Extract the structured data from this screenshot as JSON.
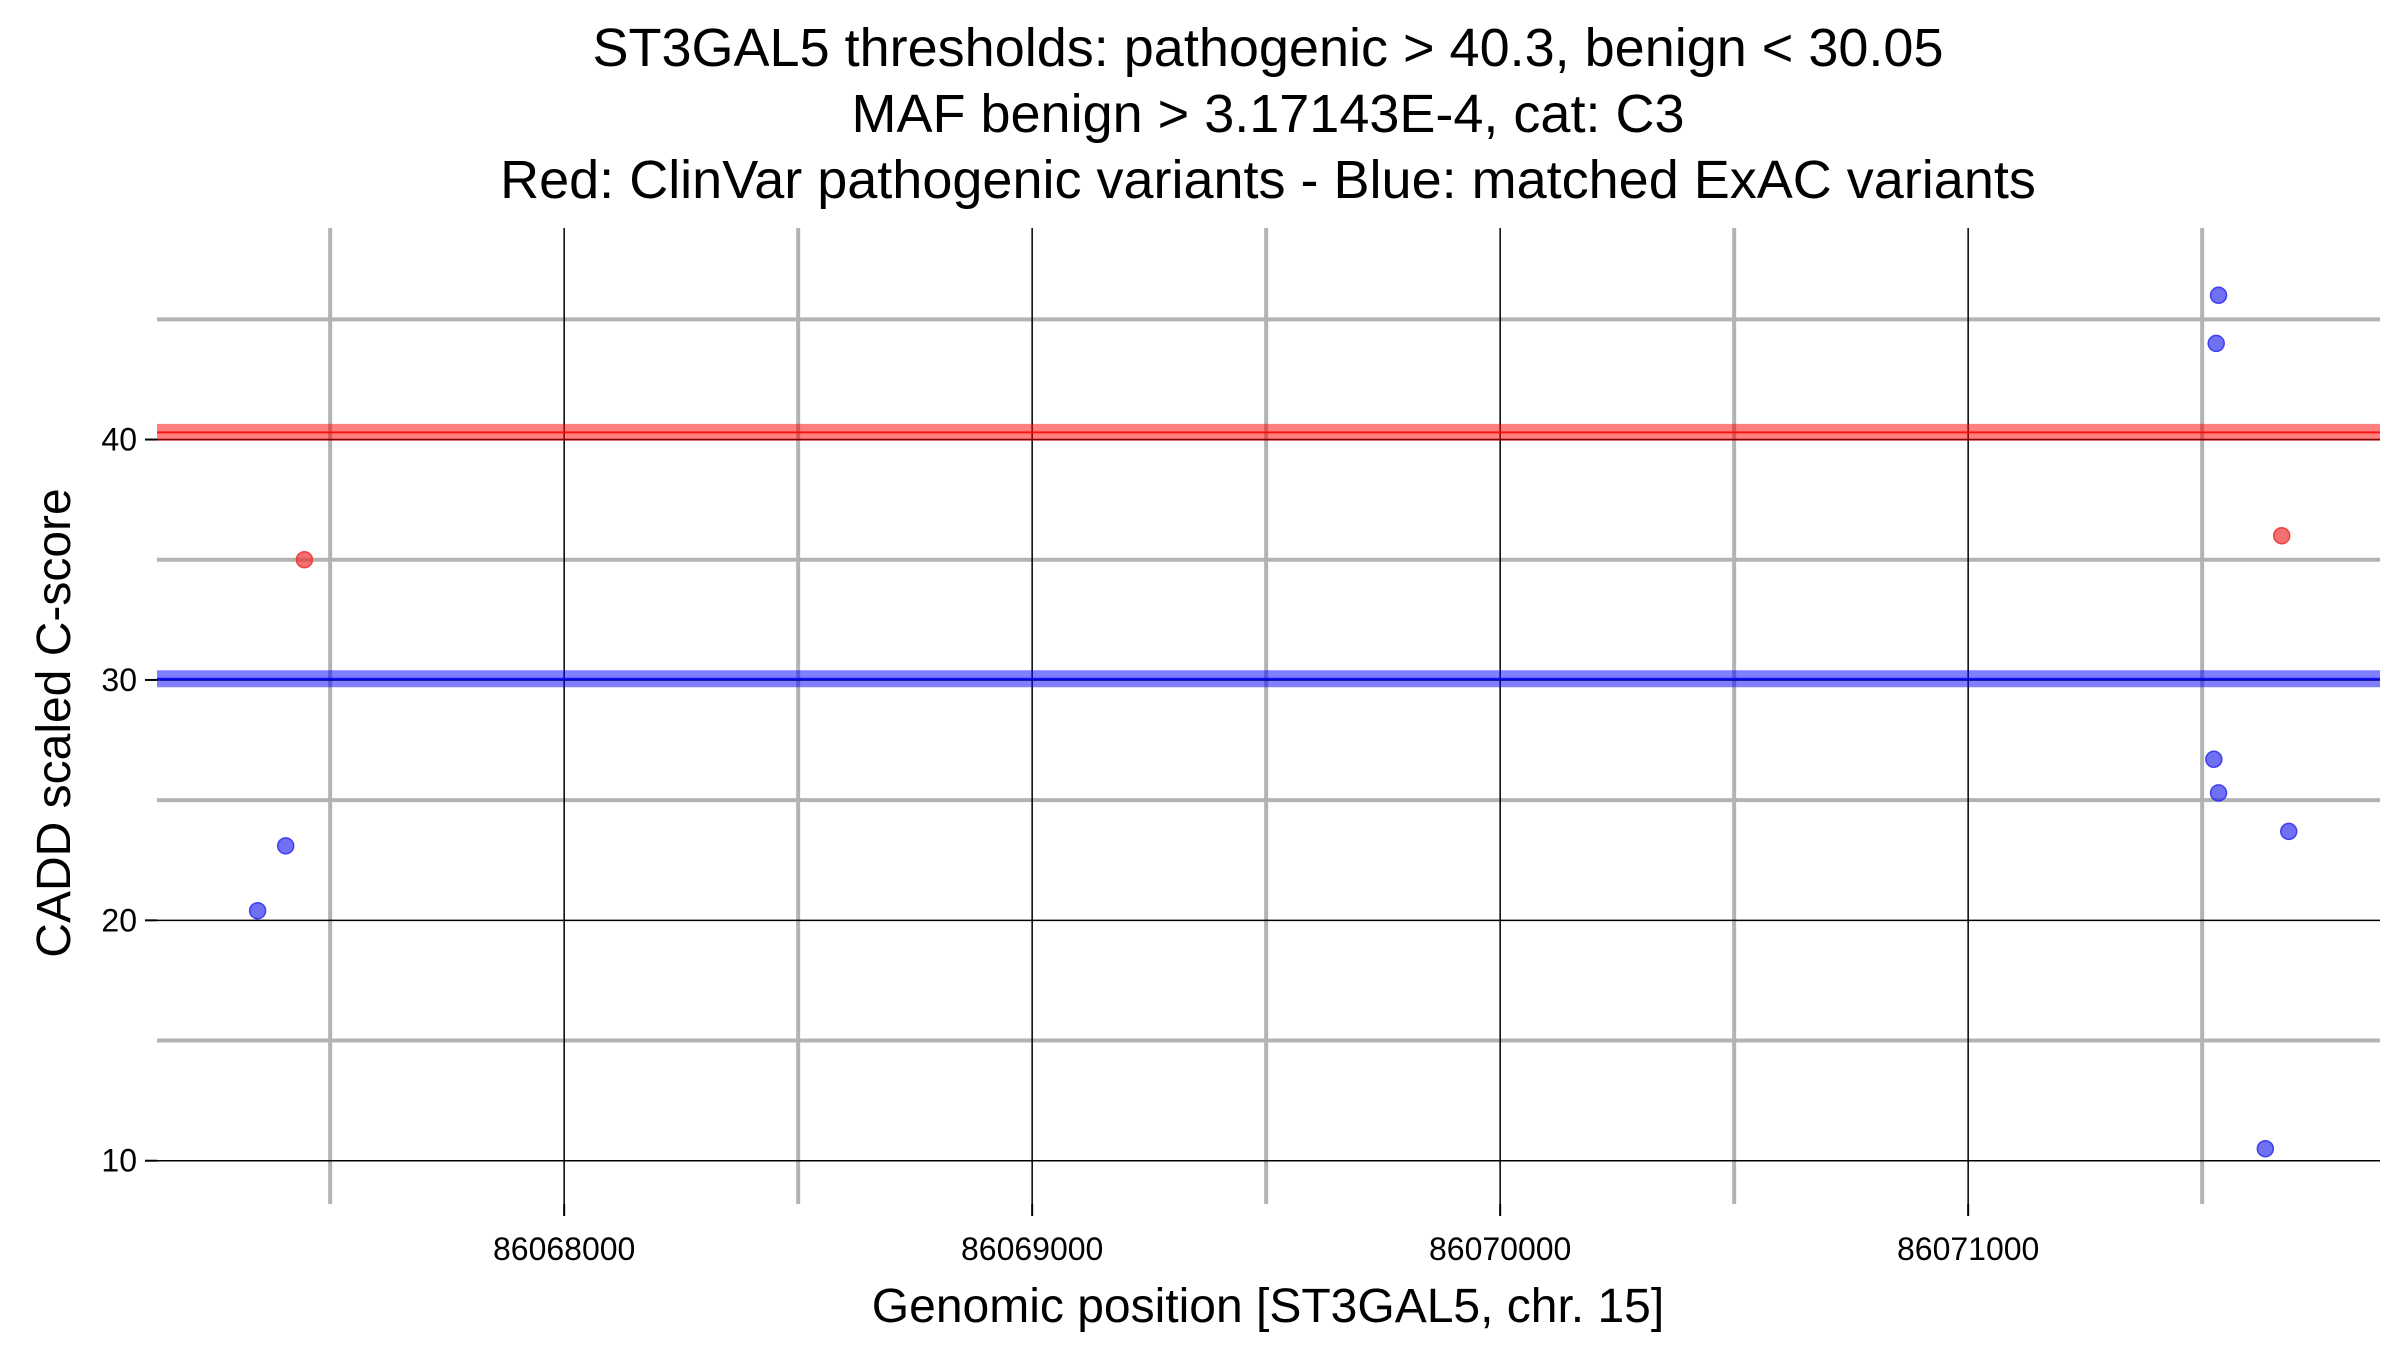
{
  "chart_data": {
    "type": "scatter",
    "title_lines": [
      "ST3GAL5 thresholds: pathogenic > 40.3, benign < 30.05",
      "MAF benign > 3.17143E-4, cat: C3",
      "Red: ClinVar pathogenic variants - Blue: matched ExAC variants"
    ],
    "xlabel": "Genomic position [ST3GAL5, chr. 15]",
    "ylabel": "CADD scaled C-score",
    "xlim": [
      86067130,
      86071880
    ],
    "ylim": [
      8.2,
      48.8
    ],
    "x_major_ticks": [
      86068000,
      86069000,
      86070000,
      86071000
    ],
    "x_tick_labels": [
      "86068000",
      "86069000",
      "86070000",
      "86071000"
    ],
    "x_minor_ticks": [
      86067500,
      86068500,
      86069500,
      86070500,
      86071500
    ],
    "y_major_ticks": [
      10,
      20,
      30,
      40
    ],
    "y_tick_labels": [
      "10",
      "20",
      "30",
      "40"
    ],
    "y_minor_ticks": [
      15,
      25,
      35,
      45
    ],
    "grid": true,
    "thresholds": [
      {
        "name": "pathogenic",
        "value": 40.3,
        "color": "#ff0000"
      },
      {
        "name": "benign",
        "value": 30.05,
        "color": "#0000ff"
      }
    ],
    "series": [
      {
        "name": "ClinVar pathogenic variants",
        "color": "#ee3333",
        "points": [
          {
            "x": 86067445,
            "y": 35.0
          },
          {
            "x": 86071670,
            "y": 36.0
          }
        ]
      },
      {
        "name": "matched ExAC variants",
        "color": "#3333ee",
        "points": [
          {
            "x": 86067345,
            "y": 20.4
          },
          {
            "x": 86067405,
            "y": 23.1
          },
          {
            "x": 86071535,
            "y": 46.0
          },
          {
            "x": 86071530,
            "y": 44.0
          },
          {
            "x": 86071525,
            "y": 26.7
          },
          {
            "x": 86071535,
            "y": 25.3
          },
          {
            "x": 86071685,
            "y": 23.7
          },
          {
            "x": 86071635,
            "y": 10.5
          }
        ]
      }
    ]
  }
}
